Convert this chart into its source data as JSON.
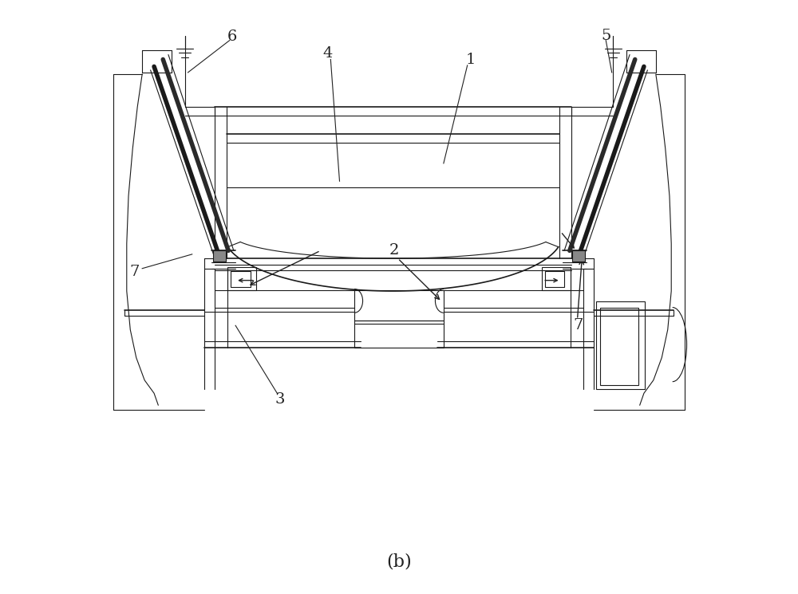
{
  "bg_color": "#ffffff",
  "line_color": "#1a1a1a",
  "annotation_color": "#222222",
  "label_fontsize": 14,
  "subtitle": "(b)",
  "subtitle_fontsize": 16
}
